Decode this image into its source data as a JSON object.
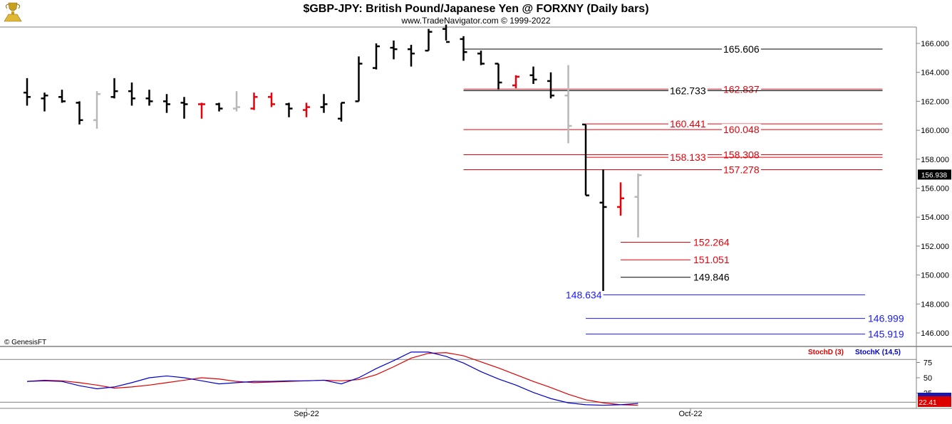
{
  "title": "$GBP-JPY:  British Pound/Japanese Yen @ FORXNY  (Daily bars)",
  "subtitle": "www.TradeNavigator.com © 1999-2022",
  "copyright": "© GenesisFT",
  "logo_icon": "trophy-logo-icon",
  "colors": {
    "up_bar": "#000000",
    "down_bar_red": "#e8000b",
    "neutral_bar_gray": "#b8b8b8",
    "blue_level": "#1a1aff",
    "stoch_d": "#dd0000",
    "stoch_k": "#0000cc",
    "last_price_box": "#000000",
    "stoch_box": "#dd0000"
  },
  "chart_data": [
    {
      "type": "ohlc",
      "title": "$GBP-JPY:  British Pound/Japanese Yen @ FORXNY  (Daily bars)",
      "ylim": [
        145.5,
        167.2
      ],
      "yticks": [
        "146.000",
        "148.000",
        "150.000",
        "152.000",
        "154.000",
        "156.000",
        "158.000",
        "160.000",
        "162.000",
        "164.000",
        "166.000"
      ],
      "xticks": [
        {
          "label": "Sep-22",
          "bar": 16
        },
        {
          "label": "Oct-22",
          "bar": 38
        }
      ],
      "last_price": "156.938",
      "bars": [
        {
          "i": 0,
          "o": 162.6,
          "h": 163.6,
          "l": 161.7,
          "c": 162.3,
          "color": "black"
        },
        {
          "i": 1,
          "o": 162.2,
          "h": 162.6,
          "l": 161.3,
          "c": 162.4,
          "color": "black"
        },
        {
          "i": 2,
          "o": 162.3,
          "h": 162.8,
          "l": 161.9,
          "c": 162.0,
          "color": "black"
        },
        {
          "i": 3,
          "o": 161.9,
          "h": 162.0,
          "l": 160.4,
          "c": 160.7,
          "color": "black"
        },
        {
          "i": 4,
          "o": 160.7,
          "h": 162.7,
          "l": 160.1,
          "c": 162.5,
          "color": "gray"
        },
        {
          "i": 5,
          "o": 162.3,
          "h": 163.6,
          "l": 162.2,
          "c": 162.7,
          "color": "black"
        },
        {
          "i": 6,
          "o": 162.7,
          "h": 163.3,
          "l": 161.7,
          "c": 162.2,
          "color": "black"
        },
        {
          "i": 7,
          "o": 162.2,
          "h": 162.8,
          "l": 161.7,
          "c": 162.0,
          "color": "black"
        },
        {
          "i": 8,
          "o": 162.0,
          "h": 162.5,
          "l": 161.2,
          "c": 161.8,
          "color": "black"
        },
        {
          "i": 9,
          "o": 161.9,
          "h": 162.3,
          "l": 160.8,
          "c": 161.8,
          "color": "black"
        },
        {
          "i": 10,
          "o": 161.8,
          "h": 161.9,
          "l": 160.8,
          "c": 161.8,
          "color": "red"
        },
        {
          "i": 11,
          "o": 161.8,
          "h": 161.9,
          "l": 161.3,
          "c": 161.5,
          "color": "black"
        },
        {
          "i": 12,
          "o": 161.5,
          "h": 162.7,
          "l": 161.3,
          "c": 161.6,
          "color": "gray"
        },
        {
          "i": 13,
          "o": 161.5,
          "h": 162.6,
          "l": 161.4,
          "c": 162.3,
          "color": "red"
        },
        {
          "i": 14,
          "o": 162.3,
          "h": 162.6,
          "l": 161.6,
          "c": 161.8,
          "color": "red"
        },
        {
          "i": 15,
          "o": 161.8,
          "h": 161.9,
          "l": 160.9,
          "c": 161.5,
          "color": "black"
        },
        {
          "i": 16,
          "o": 161.4,
          "h": 161.9,
          "l": 160.9,
          "c": 161.6,
          "color": "red"
        },
        {
          "i": 17,
          "o": 161.6,
          "h": 162.5,
          "l": 161.2,
          "c": 161.8,
          "color": "black"
        },
        {
          "i": 18,
          "o": 160.8,
          "h": 161.9,
          "l": 160.6,
          "c": 161.9,
          "color": "black"
        },
        {
          "i": 19,
          "o": 162.0,
          "h": 165.1,
          "l": 162.0,
          "c": 164.6,
          "color": "black"
        },
        {
          "i": 20,
          "o": 164.3,
          "h": 166.0,
          "l": 164.2,
          "c": 165.8,
          "color": "black"
        },
        {
          "i": 21,
          "o": 165.7,
          "h": 166.2,
          "l": 164.9,
          "c": 165.6,
          "color": "black"
        },
        {
          "i": 22,
          "o": 165.6,
          "h": 165.9,
          "l": 164.4,
          "c": 165.3,
          "color": "black"
        },
        {
          "i": 23,
          "o": 165.5,
          "h": 167.0,
          "l": 165.5,
          "c": 166.8,
          "color": "black"
        },
        {
          "i": 24,
          "o": 167.0,
          "h": 167.3,
          "l": 166.2,
          "c": 166.1,
          "color": "black"
        },
        {
          "i": 25,
          "o": 166.3,
          "h": 166.5,
          "l": 164.8,
          "c": 165.4,
          "color": "black"
        },
        {
          "i": 26,
          "o": 165.3,
          "h": 165.5,
          "l": 164.5,
          "c": 164.6,
          "color": "black"
        },
        {
          "i": 27,
          "o": 164.6,
          "h": 164.6,
          "l": 162.8,
          "c": 163.3,
          "color": "black"
        },
        {
          "i": 28,
          "o": 163.1,
          "h": 163.8,
          "l": 162.9,
          "c": 163.7,
          "color": "red"
        },
        {
          "i": 29,
          "o": 163.8,
          "h": 164.4,
          "l": 163.2,
          "c": 163.5,
          "color": "black"
        },
        {
          "i": 30,
          "o": 163.4,
          "h": 164.0,
          "l": 162.2,
          "c": 162.4,
          "color": "black"
        },
        {
          "i": 31,
          "o": 162.4,
          "h": 164.5,
          "l": 159.1,
          "c": 160.3,
          "color": "gray"
        },
        {
          "i": 32,
          "o": 160.4,
          "h": 160.4,
          "l": 155.5,
          "c": 155.5,
          "color": "black"
        },
        {
          "i": 33,
          "o": 155.0,
          "h": 157.3,
          "l": 148.9,
          "c": 154.7,
          "color": "black"
        },
        {
          "i": 34,
          "o": 154.7,
          "h": 156.4,
          "l": 154.1,
          "c": 155.3,
          "color": "red"
        },
        {
          "i": 35,
          "o": 155.4,
          "h": 157.0,
          "l": 152.6,
          "c": 156.9,
          "color": "gray"
        }
      ],
      "levels": [
        {
          "label": "165.606",
          "value": 165.606,
          "color": "black",
          "line_start_bar": 25,
          "line_end_bar": 49,
          "label_side": "right"
        },
        {
          "label": "162.837",
          "value": 162.837,
          "color": "red",
          "line_start_bar": 25,
          "line_end_bar": 49,
          "label_side": "right"
        },
        {
          "label": "162.733",
          "value": 162.733,
          "color": "black",
          "line_start_bar": 25,
          "line_end_bar": 49,
          "label_side": "mid"
        },
        {
          "label": "160.441",
          "value": 160.441,
          "color": "red",
          "line_start_bar": 32,
          "line_end_bar": 49,
          "label_side": "mid"
        },
        {
          "label": "160.048",
          "value": 160.048,
          "color": "red",
          "line_start_bar": 25,
          "line_end_bar": 49,
          "label_side": "right"
        },
        {
          "label": "158.308",
          "value": 158.308,
          "color": "red",
          "line_start_bar": 25,
          "line_end_bar": 49,
          "label_side": "right"
        },
        {
          "label": "158.133",
          "value": 158.133,
          "color": "red",
          "line_start_bar": 32,
          "line_end_bar": 49,
          "label_side": "mid"
        },
        {
          "label": "157.278",
          "value": 157.278,
          "color": "red",
          "line_start_bar": 25,
          "line_end_bar": 49,
          "label_side": "right"
        },
        {
          "label": "152.264",
          "value": 152.264,
          "color": "red",
          "line_start_bar": 34,
          "line_end_bar": 38,
          "label_side": "end"
        },
        {
          "label": "151.051",
          "value": 151.051,
          "color": "red",
          "line_start_bar": 34,
          "line_end_bar": 38,
          "label_side": "end"
        },
        {
          "label": "149.846",
          "value": 149.846,
          "color": "black",
          "line_start_bar": 34,
          "line_end_bar": 38,
          "label_side": "end"
        },
        {
          "label": "148.634",
          "value": 148.634,
          "color": "blue",
          "line_start_bar": 33,
          "line_end_bar": 48,
          "label_side": "left"
        },
        {
          "label": "146.999",
          "value": 146.999,
          "color": "blue",
          "line_start_bar": 32,
          "line_end_bar": 48,
          "label_side": "end"
        },
        {
          "label": "145.919",
          "value": 145.919,
          "color": "blue",
          "line_start_bar": 32,
          "line_end_bar": 48,
          "label_side": "end"
        }
      ]
    },
    {
      "type": "line",
      "ylim": [
        0,
        100
      ],
      "yticks": [
        "25",
        "50",
        "75"
      ],
      "legend": [
        "StochD (3)",
        "StochK (14,5)"
      ],
      "last_value": "22.41",
      "series": [
        {
          "name": "StochD (3)",
          "color": "red",
          "values": [
            44,
            46,
            45,
            42,
            38,
            33,
            35,
            38,
            42,
            46,
            50,
            48,
            44,
            42,
            43,
            44,
            45,
            46,
            45,
            47,
            55,
            68,
            82,
            90,
            91,
            86,
            76,
            66,
            55,
            44,
            34,
            23,
            14,
            9,
            6,
            5
          ]
        },
        {
          "name": "StochK (14,5)",
          "color": "blue",
          "values": [
            44,
            45,
            44,
            37,
            32,
            35,
            42,
            50,
            53,
            50,
            45,
            40,
            42,
            44,
            44,
            45,
            45,
            46,
            40,
            50,
            65,
            78,
            92,
            92,
            85,
            74,
            60,
            48,
            38,
            26,
            16,
            9,
            6,
            5,
            6,
            8
          ]
        }
      ]
    }
  ]
}
